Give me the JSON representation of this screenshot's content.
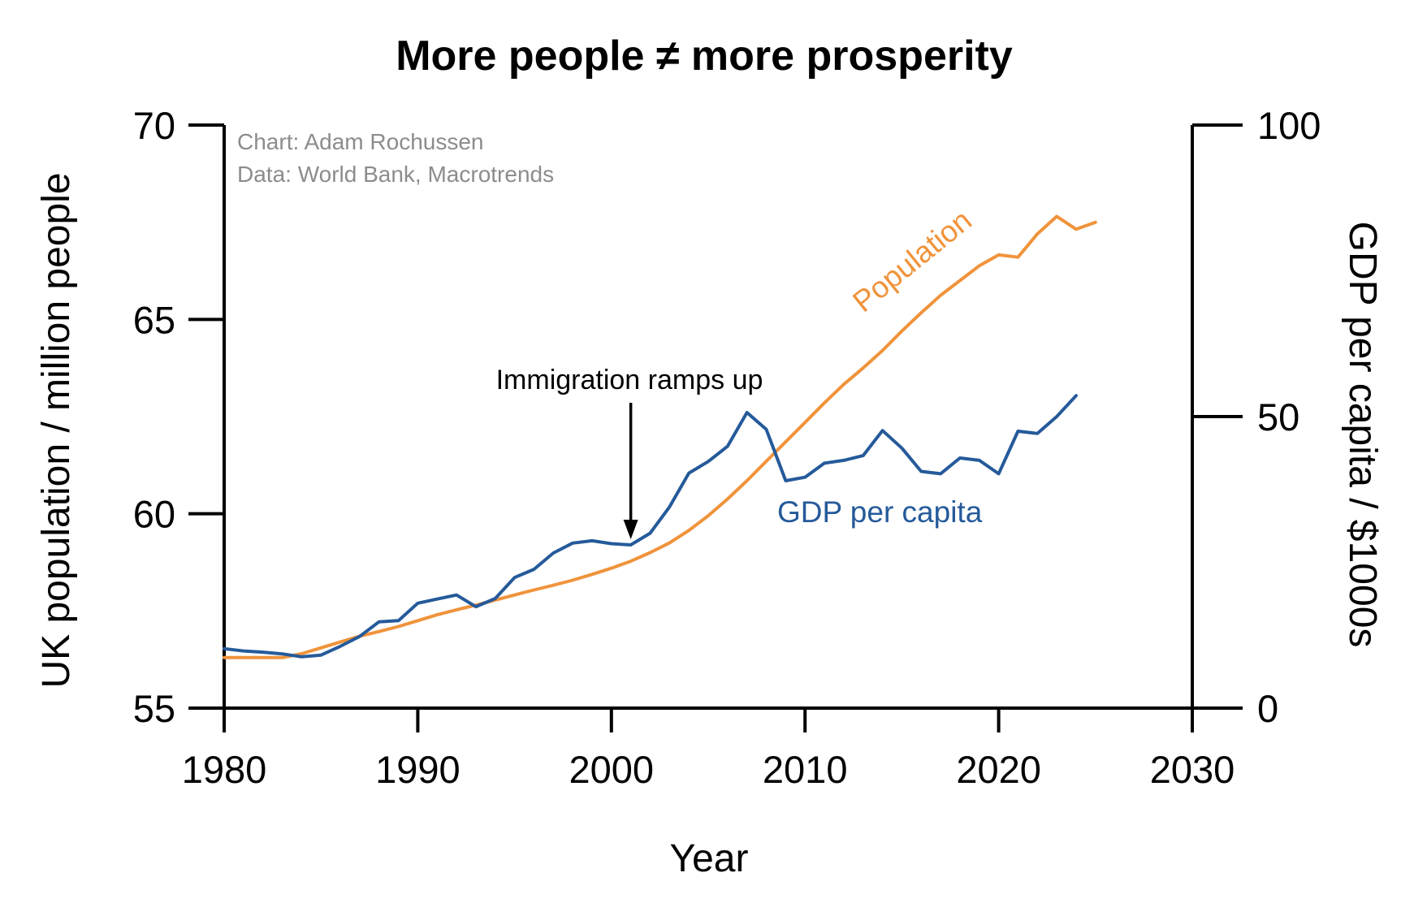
{
  "chart_data": {
    "type": "line",
    "title": "More people ≠ more prosperity",
    "xlabel": "Year",
    "ylabel": "UK population / million people",
    "y2label": "GDP per capita / $1000s",
    "xlim": [
      1980,
      2030
    ],
    "ylim": [
      55,
      70
    ],
    "y2lim": [
      0,
      100
    ],
    "xticks": [
      "1980",
      "1990",
      "2000",
      "2010",
      "2020",
      "2030"
    ],
    "yticks": [
      "55",
      "60",
      "65",
      "70"
    ],
    "y2ticks": [
      "0",
      "50",
      "100"
    ],
    "credits": [
      "Chart: Adam Rochussen",
      "Data: World Bank, Macrotrends"
    ],
    "annotation": {
      "text": "Immigration ramps up",
      "x": 2001
    },
    "colors": {
      "population": "#f0933b",
      "gdp": "#255a9a",
      "axis": "#000000",
      "credit": "#8c8c8c"
    },
    "series": [
      {
        "name": "Population",
        "axis": "left",
        "x": [
          1980,
          1981,
          1982,
          1983,
          1984,
          1985,
          1986,
          1987,
          1988,
          1989,
          1990,
          1991,
          1992,
          1993,
          1994,
          1995,
          1996,
          1997,
          1998,
          1999,
          2000,
          2001,
          2002,
          2003,
          2004,
          2005,
          2006,
          2007,
          2008,
          2009,
          2010,
          2011,
          2012,
          2013,
          2014,
          2015,
          2016,
          2017,
          2018,
          2019,
          2020,
          2021,
          2022,
          2023,
          2024,
          2025
        ],
        "values": [
          56.3,
          56.3,
          56.3,
          56.3,
          56.4,
          56.55,
          56.7,
          56.85,
          56.97,
          57.1,
          57.25,
          57.4,
          57.53,
          57.65,
          57.78,
          57.91,
          58.04,
          58.16,
          58.29,
          58.44,
          58.6,
          58.78,
          59.0,
          59.25,
          59.57,
          59.95,
          60.38,
          60.85,
          61.35,
          61.85,
          62.35,
          62.85,
          63.33,
          63.75,
          64.2,
          64.7,
          65.17,
          65.62,
          66.0,
          66.38,
          66.66,
          66.6,
          67.2,
          67.65,
          67.32,
          67.5
        ]
      },
      {
        "name": "GDP per capita",
        "axis": "right",
        "x": [
          1980,
          1981,
          1982,
          1983,
          1984,
          1985,
          1986,
          1987,
          1988,
          1989,
          1990,
          1991,
          1992,
          1993,
          1994,
          1995,
          1996,
          1997,
          1998,
          1999,
          2000,
          2001,
          2002,
          2003,
          2004,
          2005,
          2006,
          2007,
          2008,
          2009,
          2010,
          2011,
          2012,
          2013,
          2014,
          2015,
          2016,
          2017,
          2018,
          2019,
          2020,
          2021,
          2022,
          2023,
          2024
        ],
        "values": [
          10.2,
          9.8,
          9.6,
          9.3,
          8.8,
          9.1,
          10.6,
          12.3,
          14.8,
          15.0,
          18.0,
          18.7,
          19.4,
          17.4,
          18.8,
          22.4,
          23.8,
          26.6,
          28.3,
          28.7,
          28.2,
          28.0,
          30.0,
          34.5,
          40.3,
          42.3,
          44.9,
          50.7,
          47.8,
          39.0,
          39.6,
          42.0,
          42.5,
          43.3,
          47.6,
          44.6,
          40.6,
          40.2,
          42.9,
          42.5,
          40.2,
          47.5,
          47.1,
          50.0,
          53.6
        ]
      }
    ]
  }
}
